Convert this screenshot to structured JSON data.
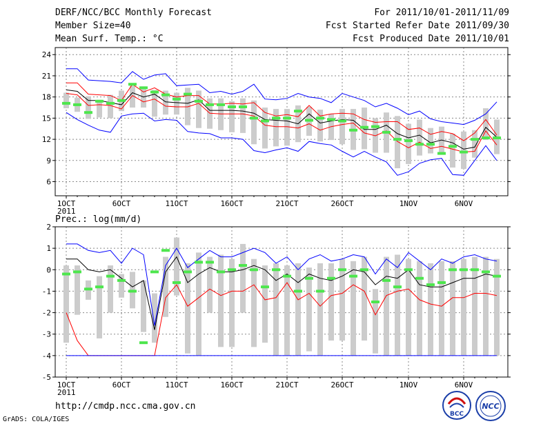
{
  "header": {
    "title": "DERF/NCC/BCC Monthly Forecast",
    "member_size": "Member Size=40",
    "variable": "Mean Surf. Temp.: °C",
    "period": "For 2011/10/01-2011/11/09",
    "started": "Fcst Started Refer Date 2011/09/30",
    "produced": "Fcst Produced Date 2011/10/01"
  },
  "footer": {
    "url": "http://cmdp.ncc.cma.gov.cn",
    "credit": "GrADS: COLA/IGES",
    "logo1_text": "BCC",
    "logo2_text": "NCC"
  },
  "colors": {
    "max_line": "#0000ff",
    "pct_line": "#ff0000",
    "mean_line": "#000000",
    "box": "#cccccc",
    "obs_marker": "#4de64d"
  },
  "chart_data": [
    {
      "type": "line",
      "title": "Mean Surf. Temp.: °C",
      "ylim": [
        4,
        25
      ],
      "yticks": [
        "24",
        "21",
        "18",
        "15",
        "12",
        "9",
        "6"
      ],
      "xtick_labels": [
        "1OCT",
        "6OCT",
        "11OCT",
        "16OCT",
        "21OCT",
        "26OCT",
        "1NOV",
        "6NOV"
      ],
      "xtick_days": [
        1,
        6,
        11,
        16,
        21,
        26,
        32,
        37
      ],
      "year_label": "2011",
      "days": 40,
      "series": [
        {
          "name": "max",
          "values": [
            22.0,
            22.0,
            20.4,
            20.3,
            20.2,
            20.0,
            21.6,
            20.5,
            21.1,
            21.3,
            19.6,
            19.7,
            19.8,
            18.6,
            18.8,
            18.4,
            18.8,
            19.8,
            17.7,
            17.6,
            17.8,
            18.5,
            18.0,
            17.8,
            17.2,
            18.5,
            18.0,
            17.5,
            16.6,
            17.1,
            16.4,
            15.5,
            16.0,
            14.9,
            14.5,
            14.3,
            14.1,
            14.7,
            15.6,
            17.3
          ]
        },
        {
          "name": "upper",
          "values": [
            20.0,
            20.0,
            18.4,
            18.3,
            18.2,
            17.5,
            19.8,
            18.7,
            19.3,
            18.4,
            18.0,
            18.2,
            18.2,
            17.0,
            17.0,
            17.1,
            17.0,
            17.2,
            15.8,
            15.3,
            15.5,
            15.2,
            16.8,
            15.3,
            15.6,
            15.7,
            15.6,
            14.8,
            14.4,
            14.5,
            14.5,
            13.4,
            13.6,
            12.7,
            13.1,
            12.8,
            11.8,
            12.9,
            14.8,
            12.6
          ]
        },
        {
          "name": "mean",
          "values": [
            19.0,
            18.8,
            17.5,
            17.5,
            17.2,
            16.9,
            18.6,
            18.0,
            18.4,
            17.3,
            17.2,
            17.1,
            17.6,
            16.1,
            16.1,
            16.1,
            16.0,
            15.7,
            14.8,
            14.7,
            14.6,
            14.2,
            15.6,
            14.3,
            14.6,
            14.8,
            14.7,
            13.4,
            13.4,
            14.0,
            12.8,
            12.2,
            12.6,
            11.5,
            11.9,
            11.5,
            10.6,
            10.9,
            13.7,
            12.3
          ]
        },
        {
          "name": "lower",
          "values": [
            18.5,
            18.3,
            16.8,
            16.9,
            16.8,
            16.3,
            18.2,
            17.3,
            17.7,
            16.7,
            16.6,
            16.6,
            17.1,
            15.7,
            15.6,
            15.6,
            15.6,
            15.3,
            14.0,
            13.8,
            13.8,
            13.6,
            14.2,
            13.3,
            13.8,
            14.1,
            14.3,
            12.9,
            12.5,
            13.2,
            11.7,
            10.8,
            11.6,
            10.7,
            11.0,
            10.6,
            10.2,
            10.3,
            13.2,
            11.2
          ]
        },
        {
          "name": "min",
          "values": [
            15.8,
            14.8,
            14.0,
            13.3,
            13.0,
            15.3,
            15.6,
            15.7,
            14.6,
            14.8,
            14.7,
            13.1,
            12.9,
            12.8,
            12.2,
            12.2,
            12.0,
            10.4,
            10.1,
            10.5,
            10.8,
            10.3,
            11.7,
            11.4,
            11.2,
            10.3,
            9.5,
            10.3,
            9.5,
            8.8,
            6.9,
            7.4,
            8.6,
            9.1,
            9.3,
            7.0,
            6.9,
            9.0,
            11.1,
            9.0
          ]
        }
      ],
      "box_low": [
        16.4,
        15.9,
        14.9,
        15.1,
        15.0,
        16.0,
        16.5,
        16.5,
        15.2,
        15.5,
        15.5,
        14.0,
        13.6,
        13.5,
        13.3,
        13.0,
        12.9,
        11.3,
        10.7,
        11.0,
        11.1,
        11.6,
        12.5,
        11.7,
        11.9,
        11.3,
        10.5,
        10.6,
        10.1,
        10.1,
        7.9,
        8.5,
        9.7,
        10.0,
        9.8,
        8.0,
        7.8,
        9.4,
        11.9,
        9.9
      ],
      "box_high": [
        18.6,
        17.9,
        18.1,
        17.6,
        18.3,
        18.9,
        19.6,
        19.5,
        19.0,
        18.9,
        18.6,
        19.3,
        18.9,
        17.8,
        17.8,
        17.4,
        17.8,
        17.5,
        16.5,
        16.3,
        16.3,
        16.8,
        16.6,
        16.2,
        15.6,
        16.3,
        16.3,
        16.5,
        15.0,
        15.8,
        15.3,
        14.2,
        14.8,
        13.6,
        13.8,
        12.8,
        13.1,
        13.3,
        16.4,
        14.8
      ],
      "observed": [
        17.1,
        16.9,
        15.8,
        17.4,
        17.1,
        17.5,
        19.8,
        19.3,
        18.7,
        18.3,
        17.7,
        18.4,
        17.4,
        16.9,
        16.9,
        16.6,
        16.6,
        15.0,
        14.6,
        15.0,
        15.0,
        16.0,
        14.7,
        15.0,
        14.8,
        14.6,
        13.3,
        13.7,
        13.8,
        13.0,
        12.0,
        11.8,
        11.3,
        11.3,
        10.0,
        11.0,
        10.2,
        12.0,
        12.2,
        12.2
      ]
    },
    {
      "type": "line",
      "title": "Prec.: log(mm/d)",
      "ylim": [
        -5,
        2
      ],
      "yticks": [
        "2",
        "1",
        "0",
        "-1",
        "-2",
        "-3",
        "-4",
        "-5"
      ],
      "xtick_labels": [
        "1OCT",
        "6OCT",
        "11OCT",
        "16OCT",
        "21OCT",
        "26OCT",
        "1NOV",
        "6NOV"
      ],
      "xtick_days": [
        1,
        6,
        11,
        16,
        21,
        26,
        32,
        37
      ],
      "year_label": "2011",
      "days": 40,
      "series": [
        {
          "name": "max",
          "values": [
            1.2,
            1.2,
            0.9,
            0.8,
            0.9,
            0.3,
            1.0,
            0.7,
            -2.6,
            0.2,
            1.0,
            0.1,
            0.5,
            0.9,
            0.6,
            0.6,
            0.8,
            1.0,
            0.8,
            0.3,
            0.6,
            0.0,
            0.5,
            0.7,
            0.4,
            0.5,
            0.7,
            0.6,
            -0.2,
            0.5,
            0.1,
            0.8,
            0.4,
            0.0,
            0.5,
            0.3,
            0.6,
            0.7,
            0.5,
            0.4
          ]
        },
        {
          "name": "mean",
          "values": [
            0.5,
            0.5,
            0.0,
            -0.1,
            0.0,
            -0.4,
            -0.8,
            -0.5,
            -2.8,
            -0.1,
            0.6,
            -0.6,
            -0.2,
            0.1,
            -0.1,
            -0.1,
            0.0,
            0.2,
            0.0,
            -0.5,
            -0.2,
            -0.6,
            -0.2,
            -0.4,
            -0.5,
            -0.3,
            0.0,
            -0.1,
            -0.7,
            -0.3,
            -0.4,
            0.0,
            -0.7,
            -0.8,
            -0.8,
            -0.6,
            -0.4,
            -0.4,
            -0.2,
            -0.3
          ]
        },
        {
          "name": "lower",
          "values": [
            -2.0,
            -3.3,
            -4.0,
            -4.0,
            -4.0,
            -4.0,
            -4.0,
            -4.0,
            -4.0,
            -1.3,
            -0.7,
            -1.7,
            -1.3,
            -0.9,
            -1.2,
            -1.0,
            -1.0,
            -0.7,
            -1.4,
            -1.3,
            -0.6,
            -1.4,
            -1.1,
            -1.7,
            -1.2,
            -1.1,
            -0.7,
            -1.0,
            -2.1,
            -1.2,
            -1.0,
            -0.9,
            -1.4,
            -1.6,
            -1.7,
            -1.3,
            -1.3,
            -1.1,
            -1.1,
            -1.2
          ]
        },
        {
          "name": "min",
          "values": [
            -4.0,
            -4.0,
            -4.0,
            -4.0,
            -4.0,
            -4.0,
            -4.0,
            -4.0,
            -4.0,
            -4.0,
            -4.0,
            -4.0,
            -4.0,
            -4.0,
            -4.0,
            -4.0,
            -4.0,
            -4.0,
            -4.0,
            -4.0,
            -4.0,
            -4.0,
            -4.0,
            -4.0,
            -4.0,
            -4.0,
            -4.0,
            -4.0,
            -4.0,
            -4.0,
            -4.0,
            -4.0,
            -4.0,
            -4.0,
            -4.0,
            -4.0,
            -4.0,
            -4.0,
            -4.0,
            -4.0
          ]
        }
      ],
      "box_low": [
        -3.4,
        -2.1,
        -1.4,
        -3.2,
        -2.0,
        -1.3,
        -1.8,
        -2.9,
        -3.4,
        -2.2,
        -1.2,
        -3.9,
        -4.0,
        -2.0,
        -3.6,
        -3.6,
        -2.0,
        -3.6,
        -3.4,
        -4.0,
        -4.0,
        -4.0,
        -3.8,
        -4.0,
        -3.3,
        -3.3,
        -4.0,
        -3.3,
        -3.9,
        -4.0,
        -4.0,
        -4.0,
        -4.0,
        -4.0,
        -4.0,
        -4.0,
        -4.0,
        -4.0,
        -4.0,
        -4.0
      ],
      "box_high": [
        0.2,
        0.2,
        -0.5,
        -0.3,
        0.2,
        -0.2,
        -0.1,
        -0.5,
        -1.1,
        0.6,
        1.5,
        0.3,
        0.8,
        0.6,
        0.7,
        0.5,
        1.2,
        0.5,
        0.2,
        0.3,
        0.2,
        0.3,
        0.1,
        0.3,
        0.3,
        0.5,
        0.4,
        0.6,
        -0.9,
        0.6,
        0.7,
        0.5,
        0.4,
        0.3,
        0.4,
        0.4,
        0.5,
        0.6,
        0.6,
        0.5
      ],
      "observed": [
        -0.2,
        -0.1,
        -0.9,
        -0.8,
        -0.3,
        -0.5,
        -1.0,
        -3.4,
        -0.1,
        0.9,
        -0.6,
        -0.1,
        0.35,
        0.35,
        -0.1,
        0.0,
        0.2,
        0.0,
        -0.8,
        0.0,
        -0.3,
        -1.0,
        -0.4,
        -1.0,
        -0.4,
        0.0,
        -0.3,
        0.0,
        -1.5,
        -0.5,
        -0.8,
        0.0,
        -0.4,
        -0.7,
        -0.6,
        0.0,
        0.0,
        0.0,
        -0.1,
        -0.3
      ]
    }
  ]
}
